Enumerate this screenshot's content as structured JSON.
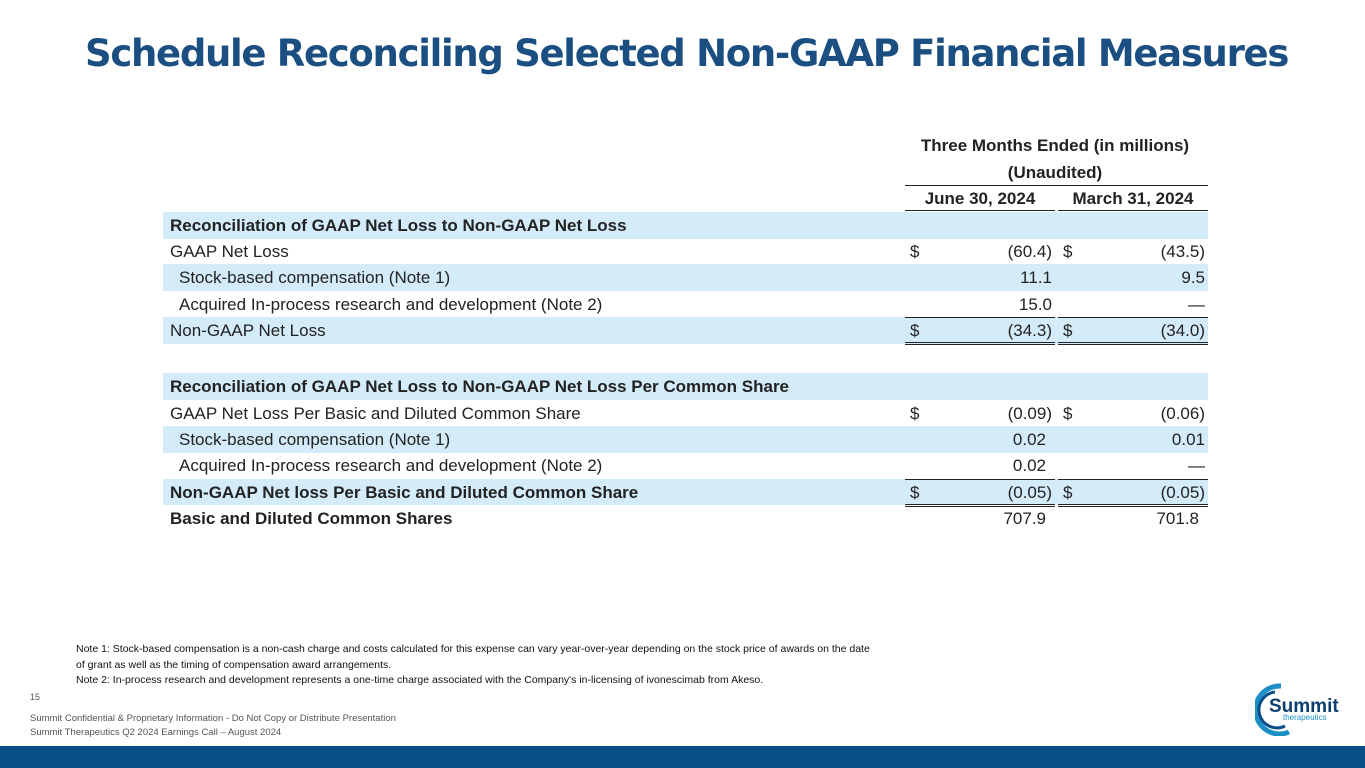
{
  "title": "Schedule Reconciling Selected Non-GAAP Financial Measures",
  "table": {
    "header": {
      "period": "Three Months Ended (in millions)",
      "status": "(Unaudited)",
      "columns": [
        "June 30, 2024",
        "March 31, 2024"
      ]
    },
    "sections": [
      {
        "heading": "Reconciliation of GAAP Net Loss to Non-GAAP Net Loss",
        "rows": [
          {
            "label": "GAAP Net Loss",
            "values": [
              {
                "symbol": "$",
                "amount": "(60.4)"
              },
              {
                "symbol": "$",
                "amount": "(43.5)"
              }
            ]
          },
          {
            "label": "Stock-based compensation (Note 1)",
            "values": [
              {
                "amount": "11.1"
              },
              {
                "amount": "9.5"
              }
            ]
          },
          {
            "label": "Acquired In-process research and development (Note 2)",
            "values": [
              {
                "amount": "15.0"
              },
              {
                "amount": "—"
              }
            ]
          },
          {
            "label": "Non-GAAP Net Loss",
            "values": [
              {
                "symbol": "$",
                "amount": "(34.3)"
              },
              {
                "symbol": "$",
                "amount": "(34.0)"
              }
            ]
          }
        ]
      },
      {
        "heading": "Reconciliation of GAAP Net Loss to Non-GAAP Net Loss Per Common Share",
        "rows": [
          {
            "label": "GAAP Net Loss Per Basic and Diluted Common Share",
            "values": [
              {
                "symbol": "$",
                "amount": "(0.09)"
              },
              {
                "symbol": "$",
                "amount": "(0.06)"
              }
            ]
          },
          {
            "label": "Stock-based compensation (Note 1)",
            "values": [
              {
                "amount": "0.02"
              },
              {
                "amount": "0.01"
              }
            ]
          },
          {
            "label": "Acquired In-process research and development (Note 2)",
            "values": [
              {
                "amount": "0.02"
              },
              {
                "amount": "—"
              }
            ]
          },
          {
            "label": "Non-GAAP Net loss Per Basic and Diluted Common Share",
            "values": [
              {
                "symbol": "$",
                "amount": "(0.05)"
              },
              {
                "symbol": "$",
                "amount": "(0.05)"
              }
            ]
          },
          {
            "label": "Basic and Diluted Common Shares",
            "values": [
              {
                "amount": "707.9"
              },
              {
                "amount": "701.8"
              }
            ]
          }
        ]
      }
    ]
  },
  "notes": [
    "Note 1: Stock-based compensation is a non-cash charge and costs calculated for this expense can vary year-over-year depending on the stock price of awards on the date of grant as well as the timing of compensation award arrangements.",
    "Note 2: In-process research and development represents a one-time charge associated with the Company's in-licensing of ivonescimab from Akeso."
  ],
  "page_number": "15",
  "footer": [
    "Summit Confidential & Proprietary Information - Do Not Copy or Distribute Presentation",
    "Summit Therapeutics Q2 2024 Earnings Call – August 2024"
  ],
  "logo": {
    "name": "Summit",
    "tagline": "therapeutics"
  }
}
